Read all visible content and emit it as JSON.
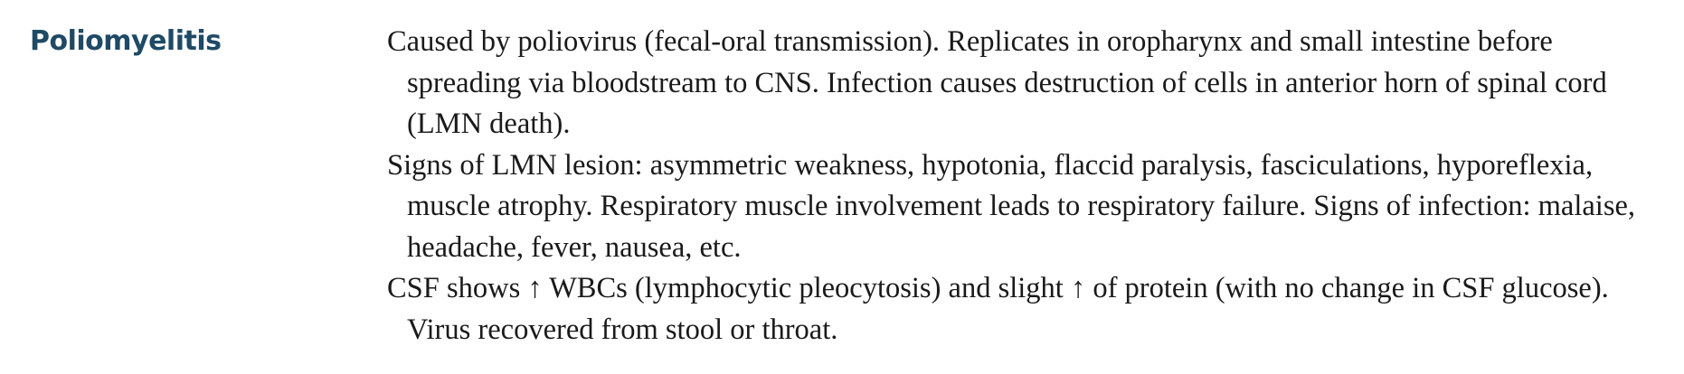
{
  "entry": {
    "term": "Poliomyelitis",
    "paragraphs": [
      "Caused by poliovirus (fecal-oral transmission). Replicates in oropharynx and small intestine before spreading via bloodstream to CNS. Infection causes destruction of cells in anterior horn of spinal cord (LMN death).",
      "Signs of LMN lesion: asymmetric weakness, hypotonia, flaccid paralysis, fasciculations, hyporeflexia, muscle atrophy. Respiratory muscle involvement leads to respiratory failure. Signs of infection: malaise, headache, fever, nausea, etc.",
      "CSF shows ↑ WBCs (lymphocytic pleocytosis) and slight ↑ of protein (with no change in CSF glucose). Virus recovered from stool or throat."
    ]
  }
}
